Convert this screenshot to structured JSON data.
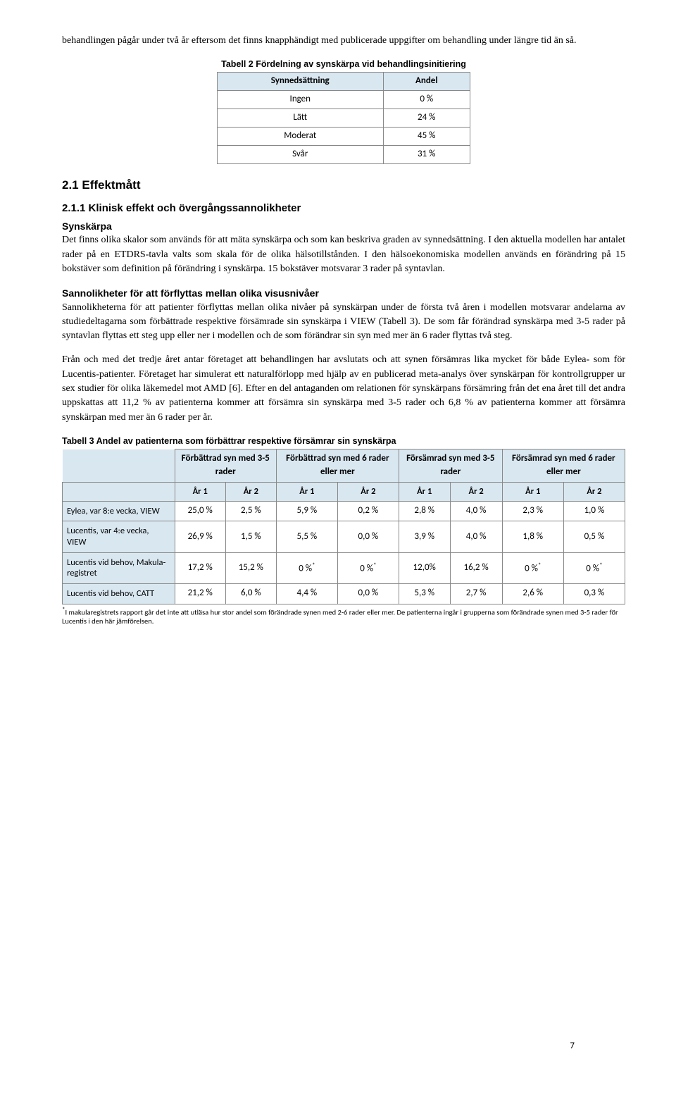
{
  "intro_para": "behandlingen pågår under två år eftersom det finns knapphändigt med publicerade uppgifter om behandling under längre tid än så.",
  "table2": {
    "caption": "Tabell 2 Fördelning av synskärpa vid behandlingsinitiering",
    "headers": [
      "Synnedsättning",
      "Andel"
    ],
    "rows": [
      [
        "Ingen",
        "0 %"
      ],
      [
        "Lätt",
        "24 %"
      ],
      [
        "Moderat",
        "45 %"
      ],
      [
        "Svår",
        "31 %"
      ]
    ]
  },
  "sec21": "2.1  Effektmått",
  "sec211": "2.1.1  Klinisk effekt och övergångssannolikheter",
  "synskarpa_label": "Synskärpa",
  "synskarpa_para": "Det finns olika skalor som används för att mäta synskärpa och som kan beskriva graden av synnedsättning. I den aktuella modellen har antalet rader på en ETDRS-tavla valts som skala för de olika hälsotillstånden. I den hälsoekonomiska modellen används en förändring på 15 bokstäver som definition på förändring i synskärpa. 15 bokstäver motsvarar 3 rader på syntavlan.",
  "sannolik_label": "Sannolikheter för att förflyttas mellan olika visusnivåer",
  "sannolik_para": "Sannolikheterna för att patienter förflyttas mellan olika nivåer på synskärpan under de första två åren i modellen motsvarar andelarna av studiedeltagarna som förbättrade respektive försämrade sin synskärpa i VIEW (Tabell 3). De som får förändrad synskärpa med 3-5 rader på syntavlan flyttas ett steg upp eller ner i modellen och de som förändrar sin syn med mer än 6 rader flyttas två steg.",
  "third_para": "Från och med det tredje året antar företaget att behandlingen har avslutats och att synen försämras lika mycket för både Eylea- som för Lucentis-patienter. Företaget har simulerat ett naturalförlopp med hjälp av en publicerad meta-analys över synskärpan för kontrollgrupper ur sex studier för olika läkemedel mot AMD [6]. Efter en del antaganden om relationen för synskärpans försämring från det ena året till det andra uppskattas att 11,2 % av patienterna kommer att försämra sin synskärpa med 3-5 rader och 6,8 % av patienterna kommer att försämra synskärpan med mer än 6 rader per år.",
  "table3": {
    "caption": "Tabell 3 Andel av patienterna som förbättrar respektive försämrar sin synskärpa",
    "group_headers": [
      "Förbättrad syn med 3-5 rader",
      "Förbättrad syn med 6 rader eller mer",
      "Försämrad syn med 3-5 rader",
      "Försämrad syn med 6 rader eller mer"
    ],
    "year_labels": [
      "År 1",
      "År 2",
      "År 1",
      "År 2",
      "År 1",
      "År 2",
      "År 1",
      "År 2"
    ],
    "rows": [
      {
        "label": "Eylea, var 8:e vecka, VIEW",
        "vals": [
          "25,0 %",
          "2,5 %",
          "5,9 %",
          "0,2 %",
          "2,8 %",
          "4,0 %",
          "2,3 %",
          "1,0 %"
        ]
      },
      {
        "label": "Lucentis, var 4:e vecka, VIEW",
        "vals": [
          "26,9 %",
          "1,5 %",
          "5,5 %",
          "0,0 %",
          "3,9 %",
          "4,0 %",
          "1,8 %",
          "0,5 %"
        ]
      },
      {
        "label": "Lucentis vid behov, Makula-registret",
        "vals": [
          "17,2 %",
          "15,2 %",
          "0 %*",
          "0 %*",
          "12,0%",
          "16,2 %",
          "0 %*",
          "0 %*"
        ]
      },
      {
        "label": "Lucentis vid behov, CATT",
        "vals": [
          "21,2 %",
          "6,0 %",
          "4,4 %",
          "0,0 %",
          "5,3 %",
          "2,7 %",
          "2,6 %",
          "0,3 %"
        ]
      }
    ]
  },
  "footnote": "*I makularegistrets rapport går det inte att utläsa hur stor andel som förändrade synen med 2-6 rader eller mer. De patienterna ingår i grupperna som förändrade synen med 3-5 rader för Lucentis i den här jämförelsen.",
  "page_number": "7"
}
